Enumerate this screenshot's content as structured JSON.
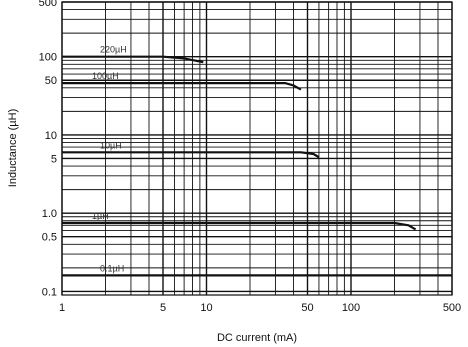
{
  "chart_data": {
    "type": "line",
    "title": "",
    "xlabel": "DC current (mA)",
    "ylabel": "Inductance (µH)",
    "x_scale": "log",
    "y_scale": "log",
    "xlim": [
      1,
      500
    ],
    "ylim": [
      0.09,
      500
    ],
    "grid": true,
    "x_ticks": [
      {
        "value": 1,
        "label": "1"
      },
      {
        "value": 5,
        "label": "5"
      },
      {
        "value": 10,
        "label": "10"
      },
      {
        "value": 50,
        "label": "50"
      },
      {
        "value": 100,
        "label": "100"
      },
      {
        "value": 500,
        "label": "500"
      }
    ],
    "y_ticks": [
      {
        "value": 0.1,
        "label": "0.1"
      },
      {
        "value": 0.5,
        "label": "0.5"
      },
      {
        "value": 1,
        "label": "1.0"
      },
      {
        "value": 5,
        "label": "5"
      },
      {
        "value": 10,
        "label": "10"
      },
      {
        "value": 50,
        "label": "50"
      },
      {
        "value": 100,
        "label": "100"
      },
      {
        "value": 500,
        "label": "500"
      }
    ],
    "series": [
      {
        "name": "220µH",
        "color": "#111111",
        "x": [
          1,
          5,
          7,
          9.5
        ],
        "y": [
          100,
          100,
          95,
          85
        ]
      },
      {
        "name": "100µH",
        "color": "#111111",
        "x": [
          1,
          35,
          40,
          45
        ],
        "y": [
          46,
          46,
          43,
          38
        ]
      },
      {
        "name": "10µH",
        "color": "#111111",
        "x": [
          1,
          45,
          55,
          60
        ],
        "y": [
          6,
          6,
          5.7,
          5.2
        ]
      },
      {
        "name": "1µH",
        "color": "#111111",
        "x": [
          1,
          200,
          250,
          280
        ],
        "y": [
          0.75,
          0.75,
          0.7,
          0.62
        ]
      },
      {
        "name": "0.1µH",
        "color": "#111111",
        "x": [
          1,
          500
        ],
        "y": [
          0.16,
          0.16
        ]
      }
    ]
  }
}
